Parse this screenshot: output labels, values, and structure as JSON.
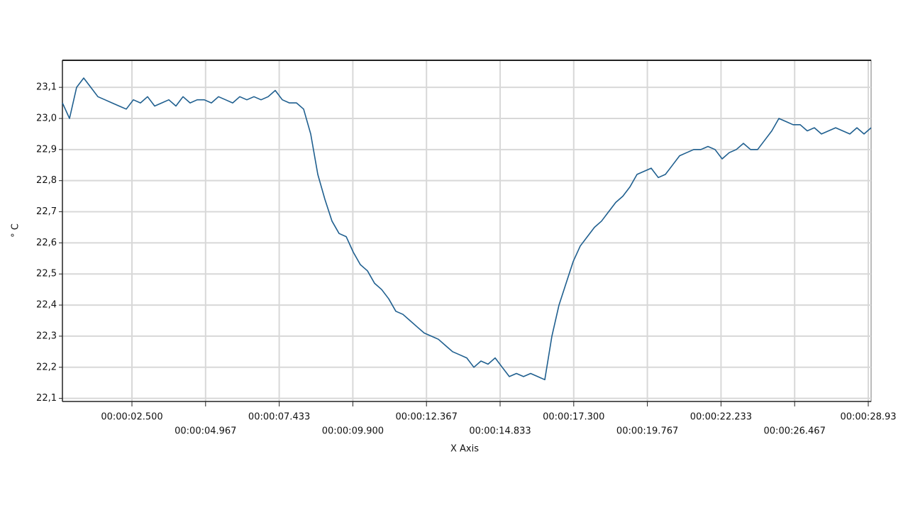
{
  "chart_data": {
    "type": "line",
    "y_label": "° C",
    "x_label": "X Axis",
    "xticks": [
      "00:00:02.500",
      "00:00:04.967",
      "00:00:07.433",
      "00:00:09.900",
      "00:00:12.367",
      "00:00:14.833",
      "00:00:17.300",
      "00:00:19.767",
      "00:00:22.233",
      "00:00:26.467",
      "00:00:28.93"
    ],
    "ylim": [
      22.09,
      23.187
    ],
    "yticks": [
      {
        "value": 22.1,
        "label": "22,1"
      },
      {
        "value": 22.2,
        "label": "22,2"
      },
      {
        "value": 22.3,
        "label": "22,3"
      },
      {
        "value": 22.4,
        "label": "22,4"
      },
      {
        "value": 22.5,
        "label": "22,5"
      },
      {
        "value": 22.6,
        "label": "22,6"
      },
      {
        "value": 22.7,
        "label": "22,7"
      },
      {
        "value": 22.8,
        "label": "22,8"
      },
      {
        "value": 22.9,
        "label": "22,9"
      },
      {
        "value": 23.0,
        "label": "23,0"
      },
      {
        "value": 23.1,
        "label": "23,1"
      }
    ],
    "grid": true,
    "color": "#1f5f8f",
    "values": [
      23.05,
      23.0,
      23.1,
      23.13,
      23.1,
      23.07,
      23.06,
      23.05,
      23.04,
      23.03,
      23.06,
      23.05,
      23.07,
      23.04,
      23.05,
      23.06,
      23.04,
      23.07,
      23.05,
      23.06,
      23.06,
      23.05,
      23.07,
      23.06,
      23.05,
      23.07,
      23.06,
      23.07,
      23.06,
      23.07,
      23.09,
      23.06,
      23.05,
      23.05,
      23.03,
      22.95,
      22.82,
      22.74,
      22.67,
      22.63,
      22.62,
      22.57,
      22.53,
      22.51,
      22.47,
      22.45,
      22.42,
      22.38,
      22.37,
      22.35,
      22.33,
      22.31,
      22.3,
      22.29,
      22.27,
      22.25,
      22.24,
      22.23,
      22.2,
      22.22,
      22.21,
      22.23,
      22.2,
      22.17,
      22.18,
      22.17,
      22.18,
      22.17,
      22.16,
      22.3,
      22.4,
      22.47,
      22.54,
      22.59,
      22.62,
      22.65,
      22.67,
      22.7,
      22.73,
      22.75,
      22.78,
      22.82,
      22.83,
      22.84,
      22.81,
      22.82,
      22.85,
      22.88,
      22.89,
      22.9,
      22.9,
      22.91,
      22.9,
      22.87,
      22.89,
      22.9,
      22.92,
      22.9,
      22.9,
      22.93,
      22.96,
      23.0,
      22.99,
      22.98,
      22.98,
      22.96,
      22.97,
      22.95,
      22.96,
      22.97,
      22.96,
      22.95,
      22.97,
      22.95,
      22.97
    ]
  }
}
